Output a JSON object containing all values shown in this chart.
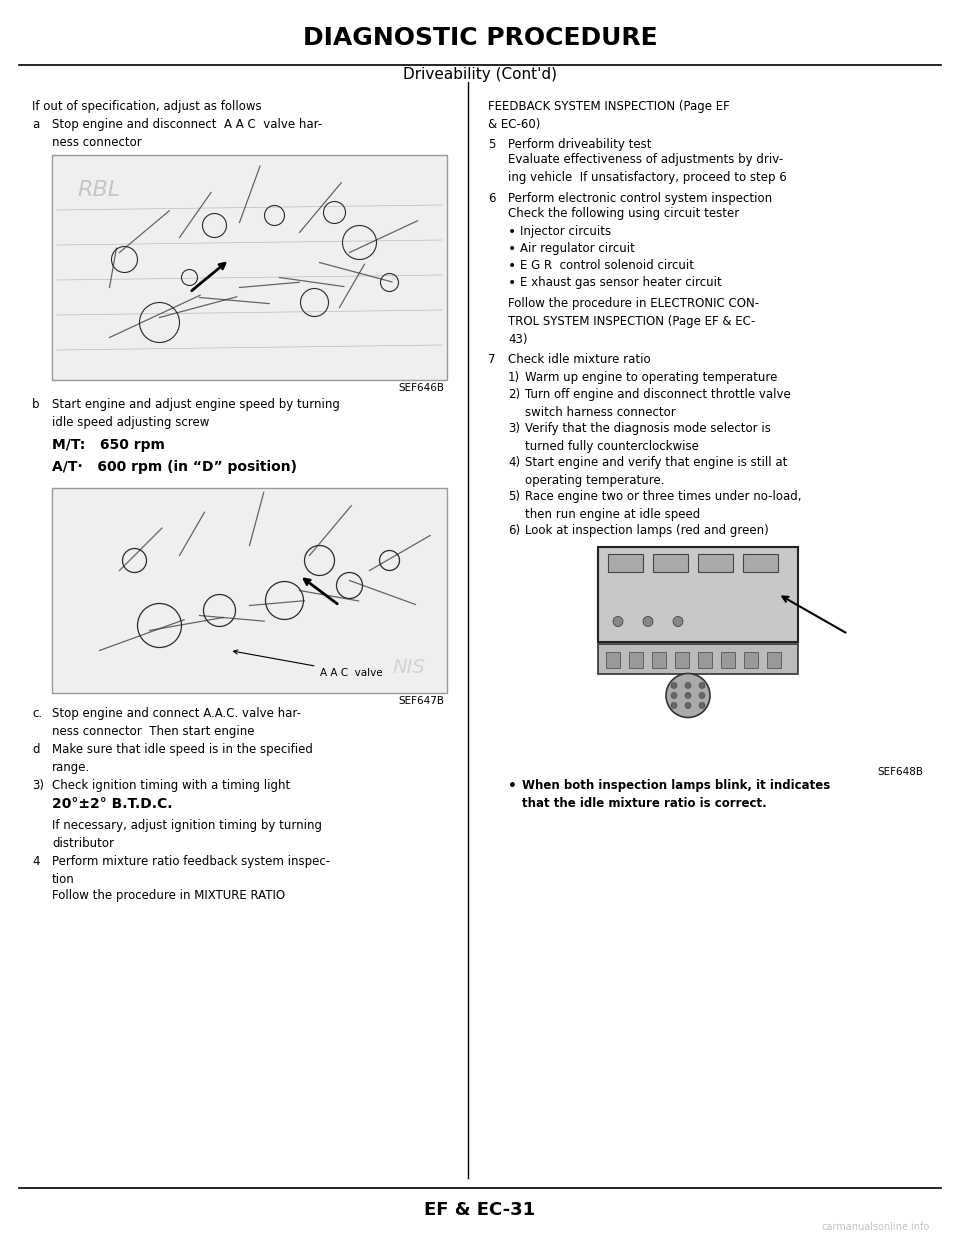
{
  "title": "DIAGNOSTIC PROCEDURE",
  "subtitle": "Driveability (Cont'd)",
  "footer": "EF & EC-31",
  "watermark": "carmanualsonline.info",
  "bg_color": "#ffffff",
  "text_color": "#000000",
  "left_col": {
    "intro": "If out of specification, adjust as follows",
    "step_a_label": "a",
    "step_a_text": "Stop engine and disconnect  A A C  valve har-\nness connector",
    "img1_caption": "SEF646B",
    "step_b_label": "b",
    "step_b_text": "Start engine and adjust engine speed by turning\nidle speed adjusting screw",
    "mt_text": "M/T:   650 rpm",
    "at_text": "A/T·   600 rpm (in “D” position)",
    "img2_caption": "SEF647B",
    "step_c_label": "c.",
    "step_c_text": "Stop engine and connect A.A.C. valve har-\nness connector  Then start engine",
    "step_d_label": "d",
    "step_d_text": "Make sure that idle speed is in the specified\nrange.",
    "step_3_label": "3)",
    "step_3_text": "Check ignition timing with a timing light",
    "timing_text": "20°±2° B.T.D.C.",
    "step_3b_text": "If necessary, adjust ignition timing by turning\ndistributor",
    "step_4_label": "4",
    "step_4_text": "Perform mixture ratio feedback system inspec-\ntion",
    "step_4b_text": "Follow the procedure in MIXTURE RATIO"
  },
  "right_col": {
    "feedback_text": "FEEDBACK SYSTEM INSPECTION (Page EF\n& EC-60)",
    "step_5_label": "5",
    "step_5_text": "Perform driveability test",
    "step_5b_text": "Evaluate effectiveness of adjustments by driv-\ning vehicle  If unsatisfactory, proceed to step 6",
    "step_6_label": "6",
    "step_6_text": "Perform electronic control system inspection",
    "step_6b_text": "Check the following using circuit tester",
    "bullet1": "Injector circuits",
    "bullet2": "Air regulator circuit",
    "bullet3": "E G R  control solenoid circuit",
    "bullet4": "E xhaust gas sensor heater circuit",
    "follow_text": "Follow the procedure in ELECTRONIC CON-\nTROL SYSTEM INSPECTION (Page EF & EC-\n43)",
    "step_7_label": "7",
    "step_7_text": "Check idle mixture ratio",
    "step_71_label": "1)",
    "step_71_text": "Warm up engine to operating temperature",
    "step_72_label": "2)",
    "step_72_text": "Turn off engine and disconnect throttle valve\nswitch harness connector",
    "step_73_label": "3)",
    "step_73_text": "Verify that the diagnosis mode selector is\nturned fully counterclockwise",
    "step_74_label": "4)",
    "step_74_text": "Start engine and verify that engine is still at\noperating temperature.",
    "step_75_label": "5)",
    "step_75_text": "Race engine two or three times under no-load,\nthen run engine at idle speed",
    "step_76_label": "6)",
    "step_76_text": "Look at inspection lamps (red and green)",
    "img3_caption": "SEF648B",
    "bullet_final": "When both inspection lamps blink, it indicates\nthat the idle mixture ratio is correct."
  }
}
